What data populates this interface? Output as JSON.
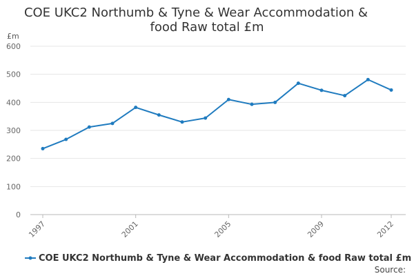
{
  "chart_data": {
    "type": "line",
    "title_lines": [
      "COE UKC2 Northumb & Tyne & Wear Accommodation &",
      "food Raw total £m"
    ],
    "y_unit": "£m",
    "x": [
      1997,
      1998,
      1999,
      2000,
      2001,
      2002,
      2003,
      2004,
      2005,
      2006,
      2007,
      2008,
      2009,
      2010,
      2011,
      2012
    ],
    "x_tick_labels": [
      "1997",
      "2001",
      "2005",
      "2009",
      "2012"
    ],
    "ylim": [
      0,
      600
    ],
    "y_ticks": [
      0,
      100,
      200,
      300,
      400,
      500,
      600
    ],
    "grid": true,
    "legend_position": "bottom",
    "series": [
      {
        "name": "COE UKC2 Northumb & Tyne & Wear Accommodation & food Raw total £m",
        "color": "#1f7bbf",
        "values": [
          235,
          268,
          312,
          325,
          382,
          355,
          330,
          344,
          410,
          393,
          400,
          468,
          443,
          424,
          481,
          444
        ]
      }
    ]
  },
  "footer": {
    "source": "Source:"
  }
}
